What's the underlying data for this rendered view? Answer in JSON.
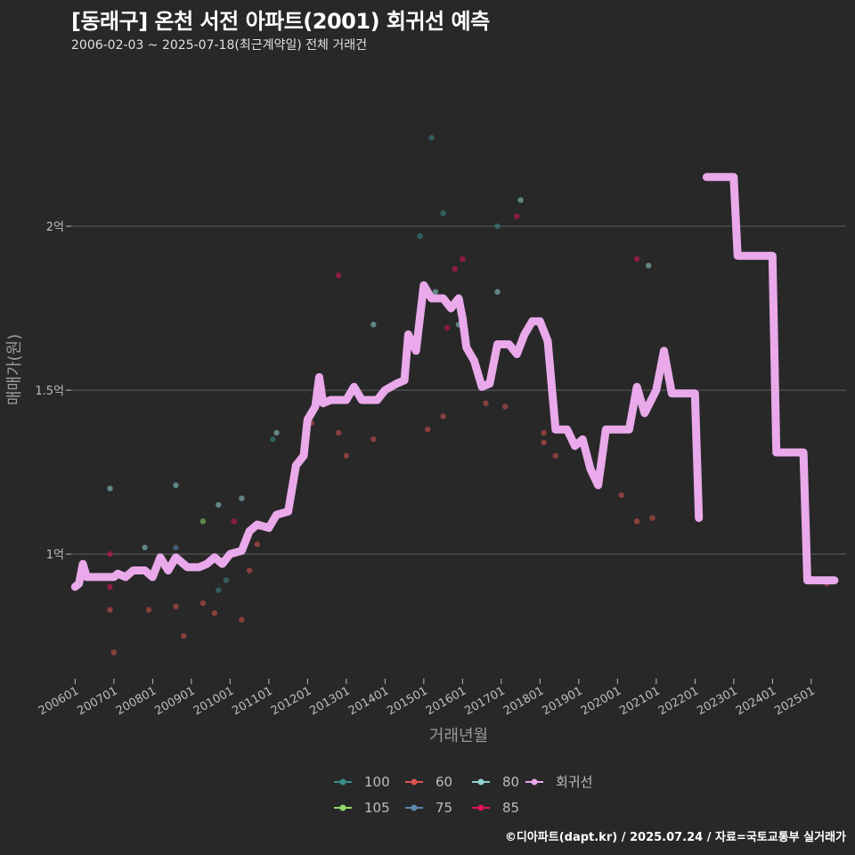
{
  "header": {
    "title": "[동래구] 온천 서전 아파트(2001) 회귀선 예측",
    "subtitle": "2006-02-03 ~ 2025-07-18(최근계약일) 전체 거래건"
  },
  "caption": "©디아파트(dapt.kr) / 2025.07.24 / 자료=국토교통부 실거래가",
  "chart_data": {
    "type": "scatter",
    "xlabel": "거래년월",
    "ylabel": "매매가(원)",
    "xlim": [
      2005.9,
      2025.9
    ],
    "ylim": [
      0.62,
      2.5
    ],
    "y_ticks": [
      {
        "value": 1.0,
        "label": "1억"
      },
      {
        "value": 1.5,
        "label": "1.5억"
      },
      {
        "value": 2.0,
        "label": "2억"
      }
    ],
    "x_ticks": [
      "200601",
      "200701",
      "200801",
      "200901",
      "201001",
      "201101",
      "201201",
      "201301",
      "201401",
      "201501",
      "201601",
      "201701",
      "201801",
      "201901",
      "202001",
      "202101",
      "202201",
      "202301",
      "202401",
      "202501"
    ],
    "grid": true,
    "legend_position": "bottom",
    "series": [
      {
        "name": "100",
        "color": "#3a8b8b",
        "points": [
          [
            2009.7,
            0.89
          ],
          [
            2009.9,
            0.92
          ],
          [
            2011.1,
            1.35
          ],
          [
            2014.9,
            1.97
          ],
          [
            2015.2,
            2.27
          ],
          [
            2015.5,
            2.04
          ],
          [
            2016.9,
            2.0
          ]
        ]
      },
      {
        "name": "105",
        "color": "#8fd96a",
        "points": [
          [
            2009.3,
            1.1
          ]
        ]
      },
      {
        "name": "60",
        "color": "#d9534f",
        "points": [
          [
            2006.9,
            0.83
          ],
          [
            2007.0,
            0.7
          ],
          [
            2007.9,
            0.83
          ],
          [
            2008.6,
            0.84
          ],
          [
            2008.8,
            0.75
          ],
          [
            2009.3,
            0.85
          ],
          [
            2009.6,
            0.82
          ],
          [
            2010.3,
            0.8
          ],
          [
            2010.5,
            0.95
          ],
          [
            2010.7,
            1.03
          ],
          [
            2012.1,
            1.4
          ],
          [
            2012.8,
            1.37
          ],
          [
            2013.0,
            1.3
          ],
          [
            2013.7,
            1.35
          ],
          [
            2015.1,
            1.38
          ],
          [
            2015.5,
            1.42
          ],
          [
            2016.6,
            1.46
          ],
          [
            2017.1,
            1.45
          ],
          [
            2018.1,
            1.34
          ],
          [
            2018.1,
            1.37
          ],
          [
            2018.4,
            1.3
          ],
          [
            2020.1,
            1.18
          ],
          [
            2020.5,
            1.1
          ],
          [
            2020.9,
            1.11
          ],
          [
            2025.4,
            0.91
          ]
        ]
      },
      {
        "name": "75",
        "color": "#5b87b0",
        "points": [
          [
            2008.6,
            1.02
          ]
        ]
      },
      {
        "name": "80",
        "color": "#8fd0d0",
        "points": [
          [
            2006.9,
            1.2
          ],
          [
            2007.8,
            1.02
          ],
          [
            2008.2,
            0.99
          ],
          [
            2008.6,
            1.21
          ],
          [
            2009.7,
            1.15
          ],
          [
            2010.3,
            1.17
          ],
          [
            2011.2,
            1.37
          ],
          [
            2013.7,
            1.7
          ],
          [
            2014.9,
            1.69
          ],
          [
            2015.3,
            1.8
          ],
          [
            2015.9,
            1.7
          ],
          [
            2016.9,
            1.8
          ],
          [
            2017.5,
            2.08
          ],
          [
            2020.8,
            1.88
          ]
        ]
      },
      {
        "name": "85",
        "color": "#e0115f",
        "points": [
          [
            2006.9,
            0.9
          ],
          [
            2006.9,
            1.0
          ],
          [
            2010.1,
            1.1
          ],
          [
            2012.8,
            1.85
          ],
          [
            2015.6,
            1.69
          ],
          [
            2015.8,
            1.87
          ],
          [
            2016.0,
            1.9
          ],
          [
            2017.4,
            2.03
          ],
          [
            2020.5,
            1.9
          ]
        ]
      },
      {
        "name": "회귀선",
        "color": "#e9a9ea",
        "points": []
      }
    ],
    "regression_lines": [
      {
        "name": "회귀선-1",
        "color": "#e9a9ea",
        "points": [
          [
            2006.0,
            0.9
          ],
          [
            2006.1,
            0.91
          ],
          [
            2006.2,
            0.97
          ],
          [
            2006.3,
            0.93
          ],
          [
            2007.0,
            0.93
          ],
          [
            2007.1,
            0.94
          ],
          [
            2007.3,
            0.93
          ],
          [
            2007.5,
            0.95
          ],
          [
            2007.8,
            0.95
          ],
          [
            2008.0,
            0.93
          ],
          [
            2008.2,
            0.99
          ],
          [
            2008.4,
            0.95
          ],
          [
            2008.6,
            0.99
          ],
          [
            2008.9,
            0.96
          ],
          [
            2009.2,
            0.96
          ],
          [
            2009.4,
            0.97
          ],
          [
            2009.6,
            0.99
          ],
          [
            2009.8,
            0.97
          ],
          [
            2010.0,
            1.0
          ],
          [
            2010.3,
            1.01
          ],
          [
            2010.5,
            1.07
          ],
          [
            2010.7,
            1.09
          ],
          [
            2011.0,
            1.08
          ],
          [
            2011.2,
            1.12
          ],
          [
            2011.5,
            1.13
          ],
          [
            2011.7,
            1.27
          ],
          [
            2011.9,
            1.3
          ],
          [
            2012.0,
            1.41
          ],
          [
            2012.2,
            1.45
          ],
          [
            2012.3,
            1.54
          ],
          [
            2012.4,
            1.46
          ],
          [
            2012.6,
            1.47
          ],
          [
            2013.0,
            1.47
          ],
          [
            2013.2,
            1.51
          ],
          [
            2013.4,
            1.47
          ],
          [
            2013.8,
            1.47
          ],
          [
            2014.0,
            1.5
          ],
          [
            2014.3,
            1.52
          ],
          [
            2014.5,
            1.53
          ],
          [
            2014.6,
            1.67
          ],
          [
            2014.8,
            1.62
          ],
          [
            2015.0,
            1.82
          ],
          [
            2015.2,
            1.78
          ],
          [
            2015.5,
            1.78
          ],
          [
            2015.7,
            1.75
          ],
          [
            2015.9,
            1.78
          ],
          [
            2016.0,
            1.72
          ],
          [
            2016.1,
            1.63
          ],
          [
            2016.3,
            1.59
          ],
          [
            2016.5,
            1.51
          ],
          [
            2016.7,
            1.52
          ],
          [
            2016.9,
            1.64
          ],
          [
            2017.2,
            1.64
          ],
          [
            2017.4,
            1.61
          ],
          [
            2017.6,
            1.67
          ],
          [
            2017.8,
            1.71
          ],
          [
            2018.0,
            1.71
          ],
          [
            2018.2,
            1.65
          ],
          [
            2018.4,
            1.38
          ],
          [
            2018.7,
            1.38
          ],
          [
            2018.9,
            1.33
          ],
          [
            2019.1,
            1.35
          ],
          [
            2019.3,
            1.26
          ],
          [
            2019.5,
            1.21
          ],
          [
            2019.7,
            1.38
          ],
          [
            2020.0,
            1.38
          ],
          [
            2020.3,
            1.38
          ],
          [
            2020.5,
            1.51
          ],
          [
            2020.7,
            1.43
          ],
          [
            2021.0,
            1.5
          ],
          [
            2021.2,
            1.62
          ],
          [
            2021.4,
            1.49
          ],
          [
            2021.8,
            1.49
          ],
          [
            2022.0,
            1.49
          ],
          [
            2022.1,
            1.11
          ]
        ]
      },
      {
        "name": "회귀선-2",
        "color": "#e9a9ea",
        "points": [
          [
            2022.3,
            2.15
          ],
          [
            2023.0,
            2.15
          ],
          [
            2023.1,
            1.91
          ],
          [
            2024.0,
            1.91
          ],
          [
            2024.1,
            1.31
          ],
          [
            2024.8,
            1.31
          ],
          [
            2024.9,
            0.92
          ],
          [
            2025.6,
            0.92
          ]
        ]
      }
    ]
  }
}
